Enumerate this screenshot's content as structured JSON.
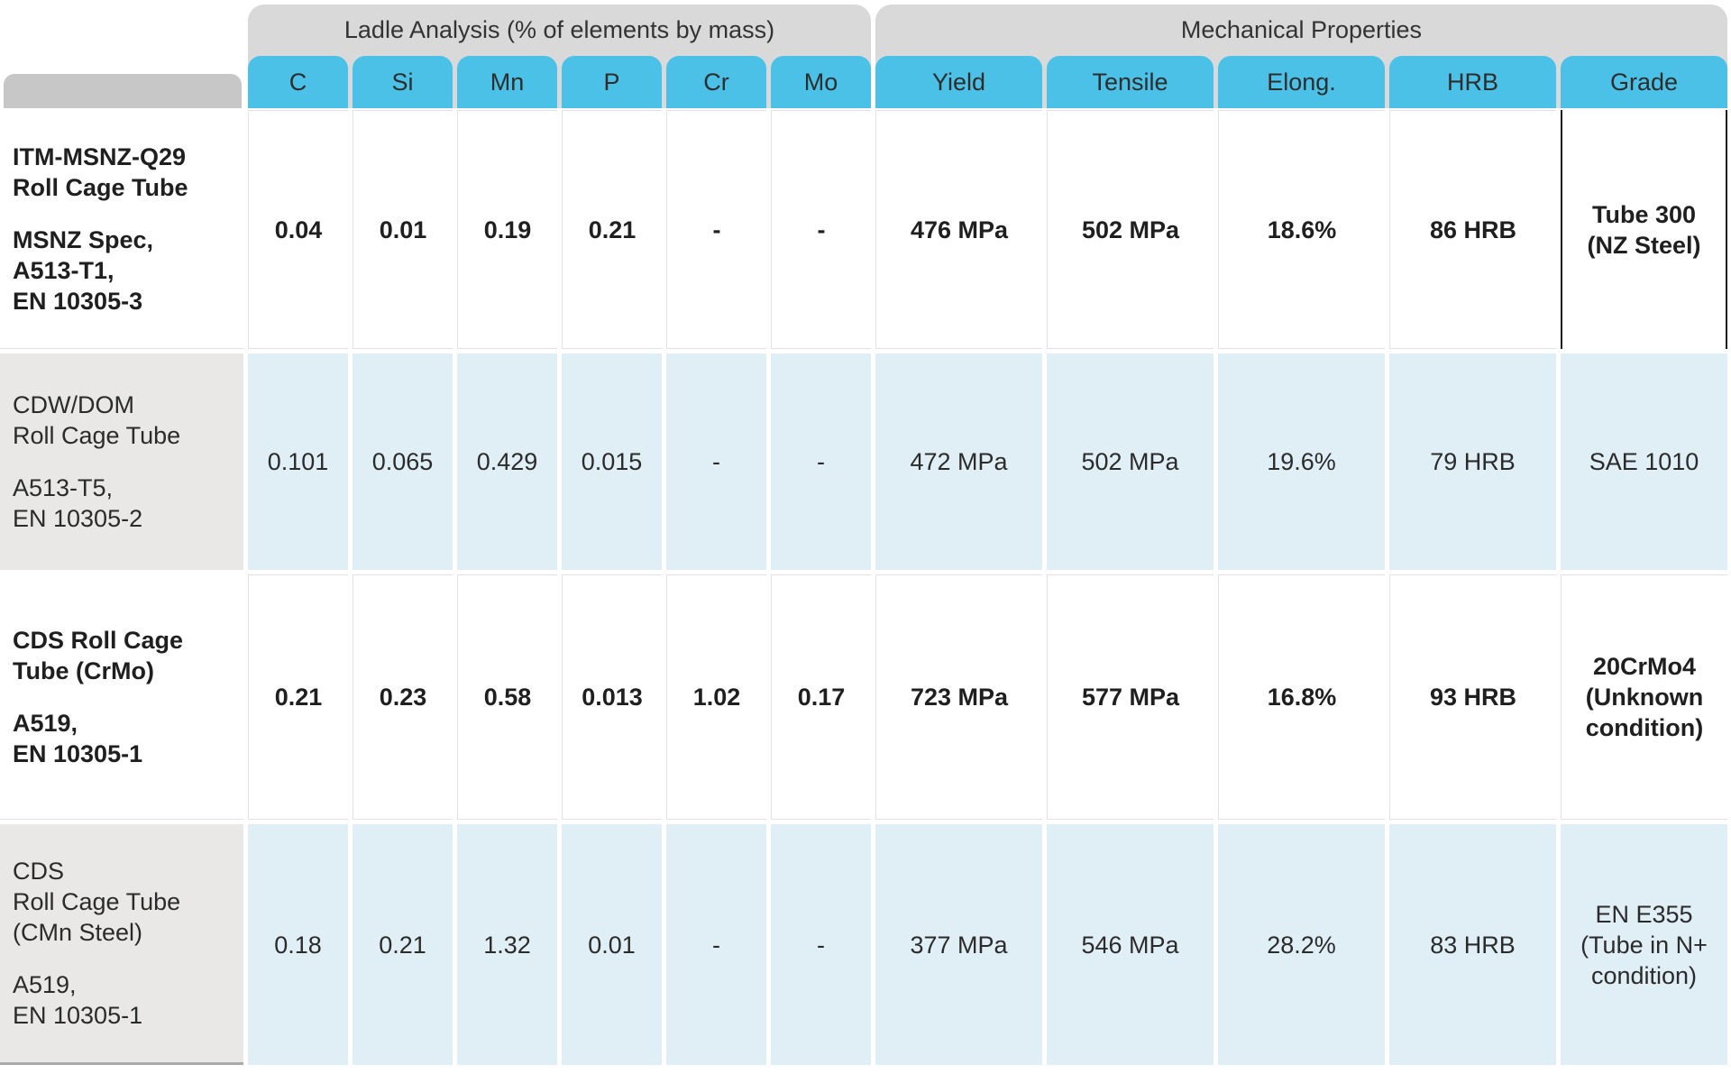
{
  "header": {
    "groups": [
      {
        "id": "ladle",
        "label": "Ladle Analysis (% of elements by mass)"
      },
      {
        "id": "mechanical",
        "label": "Mechanical Properties"
      }
    ],
    "columns": [
      "C",
      "Si",
      "Mn",
      "P",
      "Cr",
      "Mo",
      "Yield",
      "Tensile",
      "Elong.",
      "HRB",
      "Grade"
    ]
  },
  "rows": [
    {
      "name": "ITM-MSNZ-Q29\nRoll Cage Tube",
      "spec": "MSNZ Spec,\nA513-T1,\nEN 10305-3",
      "c": "0.04",
      "si": "0.01",
      "mn": "0.19",
      "p": "0.21",
      "cr": "-",
      "mo": "-",
      "yield": "476 MPa",
      "tensile": "502 MPa",
      "elong": "18.6%",
      "hrb": "86 HRB",
      "grade": "Tube 300\n(NZ Steel)"
    },
    {
      "name": "CDW/DOM\nRoll Cage Tube",
      "spec": "A513-T5,\nEN 10305-2",
      "c": "0.101",
      "si": "0.065",
      "mn": "0.429",
      "p": "0.015",
      "cr": "-",
      "mo": "-",
      "yield": "472 MPa",
      "tensile": "502 MPa",
      "elong": "19.6%",
      "hrb": "79 HRB",
      "grade": "SAE 1010"
    },
    {
      "name": "CDS Roll Cage\nTube (CrMo)",
      "spec": "A519,\nEN 10305-1",
      "c": "0.21",
      "si": "0.23",
      "mn": "0.58",
      "p": "0.013",
      "cr": "1.02",
      "mo": "0.17",
      "yield": "723 MPa",
      "tensile": "577 MPa",
      "elong": "16.8%",
      "hrb": "93 HRB",
      "grade": "20CrMo4\n(Unknown\ncondition)"
    },
    {
      "name": "CDS\nRoll Cage Tube\n(CMn Steel)",
      "spec": "A519,\nEN 10305-1",
      "c": "0.18",
      "si": "0.21",
      "mn": "1.32",
      "p": "0.01",
      "cr": "-",
      "mo": "-",
      "yield": "377 MPa",
      "tensile": "546 MPa",
      "elong": "28.2%",
      "hrb": "83 HRB",
      "grade": "EN E355\n(Tube in N+\ncondition)"
    }
  ],
  "colors": {
    "column_header_blue": "#4bc1e7",
    "group_header_gray": "#d9d9d9",
    "label_header_gray": "#c7c7c7",
    "alt_row_blue": "#e0eef5",
    "alt_row_label_gray": "#e9e8e6",
    "highlight_border": "#1c1c1c"
  }
}
